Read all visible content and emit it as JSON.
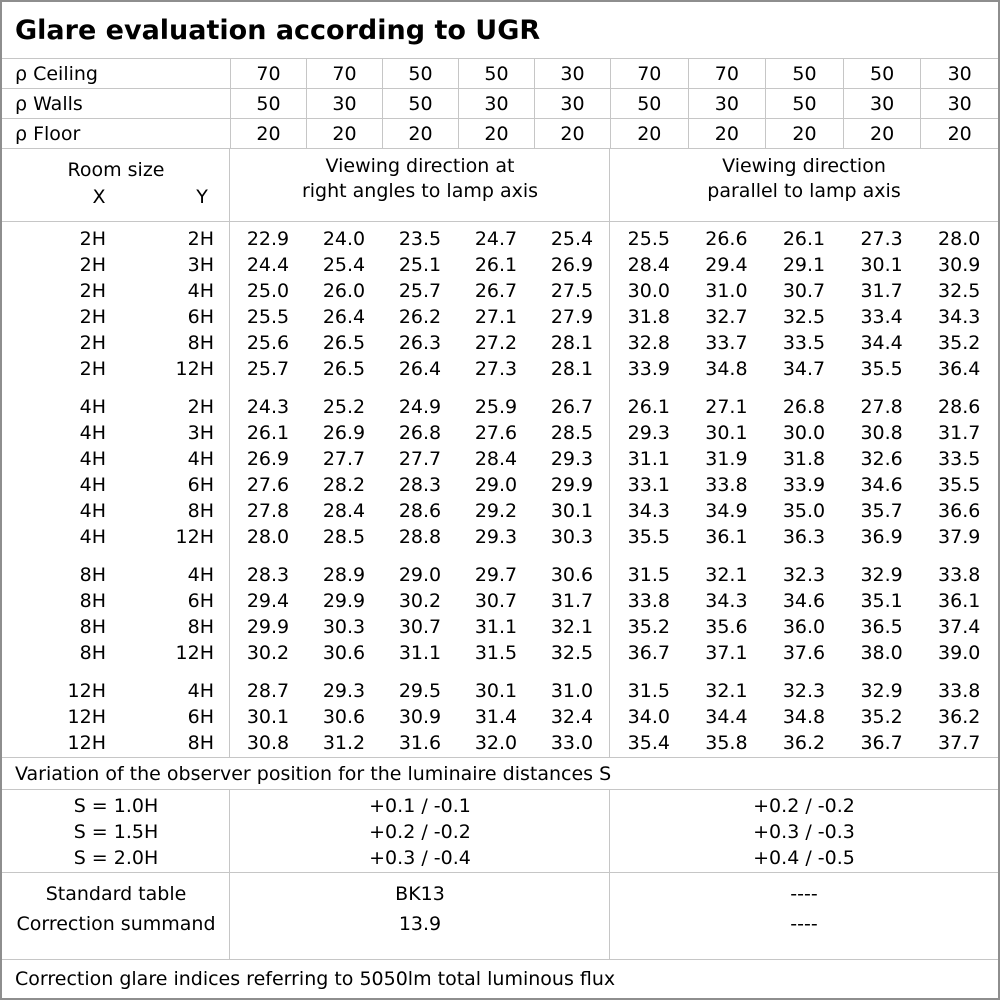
{
  "title": "Glare evaluation according to UGR",
  "colors": {
    "background": "#ffffff",
    "text": "#000000",
    "grid_line": "#c6c6c6",
    "frame": "#8e8e8e"
  },
  "reflectance": [
    {
      "label": "ρ Ceiling",
      "values": [
        "70",
        "70",
        "50",
        "50",
        "30",
        "70",
        "70",
        "50",
        "50",
        "30"
      ]
    },
    {
      "label": "ρ Walls",
      "values": [
        "50",
        "30",
        "50",
        "30",
        "30",
        "50",
        "30",
        "50",
        "30",
        "30"
      ]
    },
    {
      "label": "ρ Floor",
      "values": [
        "20",
        "20",
        "20",
        "20",
        "20",
        "20",
        "20",
        "20",
        "20",
        "20"
      ]
    }
  ],
  "header": {
    "room_size": "Room size",
    "x": "X",
    "y": "Y",
    "group1_line1": "Viewing direction at",
    "group1_line2": "right angles to lamp axis",
    "group2_line1": "Viewing direction",
    "group2_line2": "parallel to lamp axis"
  },
  "ugr": {
    "groups": [
      {
        "rows": [
          {
            "x": "2H",
            "y": "2H",
            "right_angles": [
              "22.9",
              "24.0",
              "23.5",
              "24.7",
              "25.4"
            ],
            "parallel": [
              "25.5",
              "26.6",
              "26.1",
              "27.3",
              "28.0"
            ]
          },
          {
            "x": "2H",
            "y": "3H",
            "right_angles": [
              "24.4",
              "25.4",
              "25.1",
              "26.1",
              "26.9"
            ],
            "parallel": [
              "28.4",
              "29.4",
              "29.1",
              "30.1",
              "30.9"
            ]
          },
          {
            "x": "2H",
            "y": "4H",
            "right_angles": [
              "25.0",
              "26.0",
              "25.7",
              "26.7",
              "27.5"
            ],
            "parallel": [
              "30.0",
              "31.0",
              "30.7",
              "31.7",
              "32.5"
            ]
          },
          {
            "x": "2H",
            "y": "6H",
            "right_angles": [
              "25.5",
              "26.4",
              "26.2",
              "27.1",
              "27.9"
            ],
            "parallel": [
              "31.8",
              "32.7",
              "32.5",
              "33.4",
              "34.3"
            ]
          },
          {
            "x": "2H",
            "y": "8H",
            "right_angles": [
              "25.6",
              "26.5",
              "26.3",
              "27.2",
              "28.1"
            ],
            "parallel": [
              "32.8",
              "33.7",
              "33.5",
              "34.4",
              "35.2"
            ]
          },
          {
            "x": "2H",
            "y": "12H",
            "right_angles": [
              "25.7",
              "26.5",
              "26.4",
              "27.3",
              "28.1"
            ],
            "parallel": [
              "33.9",
              "34.8",
              "34.7",
              "35.5",
              "36.4"
            ]
          }
        ]
      },
      {
        "rows": [
          {
            "x": "4H",
            "y": "2H",
            "right_angles": [
              "24.3",
              "25.2",
              "24.9",
              "25.9",
              "26.7"
            ],
            "parallel": [
              "26.1",
              "27.1",
              "26.8",
              "27.8",
              "28.6"
            ]
          },
          {
            "x": "4H",
            "y": "3H",
            "right_angles": [
              "26.1",
              "26.9",
              "26.8",
              "27.6",
              "28.5"
            ],
            "parallel": [
              "29.3",
              "30.1",
              "30.0",
              "30.8",
              "31.7"
            ]
          },
          {
            "x": "4H",
            "y": "4H",
            "right_angles": [
              "26.9",
              "27.7",
              "27.7",
              "28.4",
              "29.3"
            ],
            "parallel": [
              "31.1",
              "31.9",
              "31.8",
              "32.6",
              "33.5"
            ]
          },
          {
            "x": "4H",
            "y": "6H",
            "right_angles": [
              "27.6",
              "28.2",
              "28.3",
              "29.0",
              "29.9"
            ],
            "parallel": [
              "33.1",
              "33.8",
              "33.9",
              "34.6",
              "35.5"
            ]
          },
          {
            "x": "4H",
            "y": "8H",
            "right_angles": [
              "27.8",
              "28.4",
              "28.6",
              "29.2",
              "30.1"
            ],
            "parallel": [
              "34.3",
              "34.9",
              "35.0",
              "35.7",
              "36.6"
            ]
          },
          {
            "x": "4H",
            "y": "12H",
            "right_angles": [
              "28.0",
              "28.5",
              "28.8",
              "29.3",
              "30.3"
            ],
            "parallel": [
              "35.5",
              "36.1",
              "36.3",
              "36.9",
              "37.9"
            ]
          }
        ]
      },
      {
        "rows": [
          {
            "x": "8H",
            "y": "4H",
            "right_angles": [
              "28.3",
              "28.9",
              "29.0",
              "29.7",
              "30.6"
            ],
            "parallel": [
              "31.5",
              "32.1",
              "32.3",
              "32.9",
              "33.8"
            ]
          },
          {
            "x": "8H",
            "y": "6H",
            "right_angles": [
              "29.4",
              "29.9",
              "30.2",
              "30.7",
              "31.7"
            ],
            "parallel": [
              "33.8",
              "34.3",
              "34.6",
              "35.1",
              "36.1"
            ]
          },
          {
            "x": "8H",
            "y": "8H",
            "right_angles": [
              "29.9",
              "30.3",
              "30.7",
              "31.1",
              "32.1"
            ],
            "parallel": [
              "35.2",
              "35.6",
              "36.0",
              "36.5",
              "37.4"
            ]
          },
          {
            "x": "8H",
            "y": "12H",
            "right_angles": [
              "30.2",
              "30.6",
              "31.1",
              "31.5",
              "32.5"
            ],
            "parallel": [
              "36.7",
              "37.1",
              "37.6",
              "38.0",
              "39.0"
            ]
          }
        ]
      },
      {
        "rows": [
          {
            "x": "12H",
            "y": "4H",
            "right_angles": [
              "28.7",
              "29.3",
              "29.5",
              "30.1",
              "31.0"
            ],
            "parallel": [
              "31.5",
              "32.1",
              "32.3",
              "32.9",
              "33.8"
            ]
          },
          {
            "x": "12H",
            "y": "6H",
            "right_angles": [
              "30.1",
              "30.6",
              "30.9",
              "31.4",
              "32.4"
            ],
            "parallel": [
              "34.0",
              "34.4",
              "34.8",
              "35.2",
              "36.2"
            ]
          },
          {
            "x": "12H",
            "y": "8H",
            "right_angles": [
              "30.8",
              "31.2",
              "31.6",
              "32.0",
              "33.0"
            ],
            "parallel": [
              "35.4",
              "35.8",
              "36.2",
              "36.7",
              "37.7"
            ]
          }
        ]
      }
    ]
  },
  "variation_note": "Variation of the observer position for the luminaire distances S",
  "variation": {
    "rows": [
      {
        "s": "S = 1.0H",
        "right_angles": "+0.1 / -0.1",
        "parallel": "+0.2 / -0.2"
      },
      {
        "s": "S = 1.5H",
        "right_angles": "+0.2 / -0.2",
        "parallel": "+0.3 / -0.3"
      },
      {
        "s": "S = 2.0H",
        "right_angles": "+0.3 / -0.4",
        "parallel": "+0.4 / -0.5"
      }
    ]
  },
  "summary": {
    "rows": [
      {
        "label": "Standard table",
        "right_angles": "BK13",
        "parallel": "----"
      },
      {
        "label": "Correction summand",
        "right_angles": "13.9",
        "parallel": "----"
      }
    ]
  },
  "footer_note": "Correction glare indices referring to 5050lm total luminous flux"
}
